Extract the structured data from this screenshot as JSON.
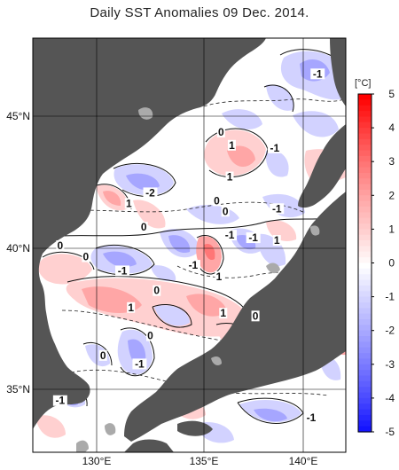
{
  "title": "Daily SST Anomalies 09 Dec. 2014.",
  "map": {
    "lat_labels": [
      "45°N",
      "40°N",
      "35°N"
    ],
    "lon_labels": [
      "130°E",
      "135°E",
      "140°E"
    ],
    "contour_labels": [
      {
        "text": "-1",
        "lon": 140.3,
        "lat": 46.6
      },
      {
        "text": "-2",
        "lon": 132.5,
        "lat": 42.1
      },
      {
        "text": "0",
        "lon": 135.8,
        "lat": 44.4
      },
      {
        "text": "1",
        "lon": 136.3,
        "lat": 43.9
      },
      {
        "text": "-1",
        "lon": 138.3,
        "lat": 43.8
      },
      {
        "text": "1",
        "lon": 136.2,
        "lat": 42.7
      },
      {
        "text": "1",
        "lon": 131.5,
        "lat": 41.7
      },
      {
        "text": "0",
        "lon": 135.6,
        "lat": 41.8
      },
      {
        "text": "0",
        "lon": 136.0,
        "lat": 41.4
      },
      {
        "text": "-1",
        "lon": 138.4,
        "lat": 41.5
      },
      {
        "text": "0",
        "lon": 132.2,
        "lat": 40.8
      },
      {
        "text": "-1",
        "lon": 136.2,
        "lat": 40.5
      },
      {
        "text": "-1",
        "lon": 137.3,
        "lat": 40.4
      },
      {
        "text": "1",
        "lon": 138.4,
        "lat": 40.3
      },
      {
        "text": "0",
        "lon": 128.3,
        "lat": 40.1
      },
      {
        "text": "0",
        "lon": 129.5,
        "lat": 39.7
      },
      {
        "text": "-1",
        "lon": 134.5,
        "lat": 39.4
      },
      {
        "text": "-1",
        "lon": 131.2,
        "lat": 39.2
      },
      {
        "text": "1",
        "lon": 135.7,
        "lat": 39.0
      },
      {
        "text": "0",
        "lon": 132.8,
        "lat": 38.5
      },
      {
        "text": "1",
        "lon": 131.6,
        "lat": 37.9
      },
      {
        "text": "1",
        "lon": 135.9,
        "lat": 37.7
      },
      {
        "text": "0",
        "lon": 137.4,
        "lat": 37.6
      },
      {
        "text": "0",
        "lon": 132.5,
        "lat": 36.9
      },
      {
        "text": "0",
        "lon": 130.3,
        "lat": 36.2
      },
      {
        "text": "-1",
        "lon": 132.0,
        "lat": 35.9
      },
      {
        "text": "-1",
        "lon": 128.3,
        "lat": 34.6
      },
      {
        "text": "-1",
        "lon": 140.0,
        "lat": 34.0
      }
    ]
  },
  "colorbar": {
    "unit_label": "[°C]",
    "tick_labels": [
      "5",
      "4",
      "3",
      "2",
      "1",
      "0",
      "-1",
      "-2",
      "-3",
      "-4",
      "-5"
    ],
    "colors": [
      "#ff0000",
      "#ff3e3e",
      "#ff7676",
      "#ffa6a6",
      "#ffd0d0",
      "#ffffff",
      "#d2d2ff",
      "#a6a6ff",
      "#7777ff",
      "#4646ff",
      "#0a0aff"
    ]
  },
  "style": {
    "land_color": "#555555",
    "island_color": "#aaaaaa"
  }
}
